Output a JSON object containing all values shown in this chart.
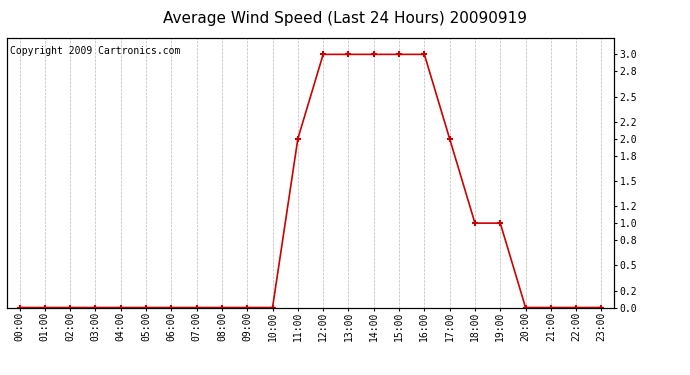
{
  "title": "Average Wind Speed (Last 24 Hours) 20090919",
  "copyright_text": "Copyright 2009 Cartronics.com",
  "hours": [
    0,
    1,
    2,
    3,
    4,
    5,
    6,
    7,
    8,
    9,
    10,
    11,
    12,
    13,
    14,
    15,
    16,
    17,
    18,
    19,
    20,
    21,
    22,
    23
  ],
  "values": [
    0.0,
    0.0,
    0.0,
    0.0,
    0.0,
    0.0,
    0.0,
    0.0,
    0.0,
    0.0,
    0.0,
    2.0,
    3.0,
    3.0,
    3.0,
    3.0,
    3.0,
    2.0,
    1.0,
    1.0,
    0.0,
    0.0,
    0.0,
    0.0
  ],
  "line_color": "#cc0000",
  "marker_color": "#cc0000",
  "bg_color": "#ffffff",
  "plot_bg_color": "#ffffff",
  "grid_color": "#bbbbbb",
  "outer_border_color": "#000000",
  "ylim": [
    0.0,
    3.2
  ],
  "yticks": [
    0.0,
    0.2,
    0.5,
    0.8,
    1.0,
    1.2,
    1.5,
    1.8,
    2.0,
    2.2,
    2.5,
    2.8,
    3.0
  ],
  "title_fontsize": 11,
  "copyright_fontsize": 7,
  "tick_fontsize": 7,
  "ytick_fontsize": 7
}
